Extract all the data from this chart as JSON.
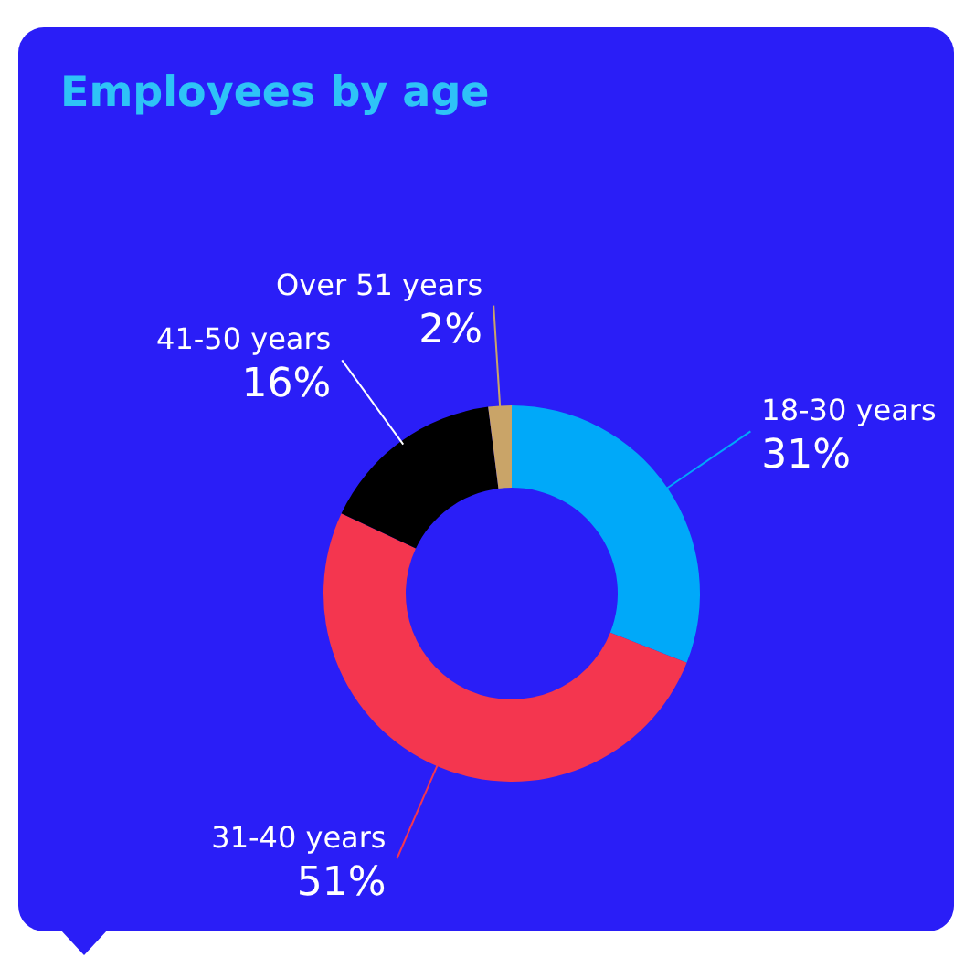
{
  "chart_data": {
    "type": "donut",
    "title": "Employees by age",
    "categories": [
      "18-30 years",
      "31-40 years",
      "41-50 years",
      "Over 51 years"
    ],
    "values": [
      31,
      51,
      16,
      2
    ],
    "value_labels": [
      "31%",
      "51%",
      "16%",
      "2%"
    ],
    "colors": [
      "#00a9f9",
      "#f4364f",
      "#000000",
      "#c9a468"
    ],
    "legend": false
  }
}
